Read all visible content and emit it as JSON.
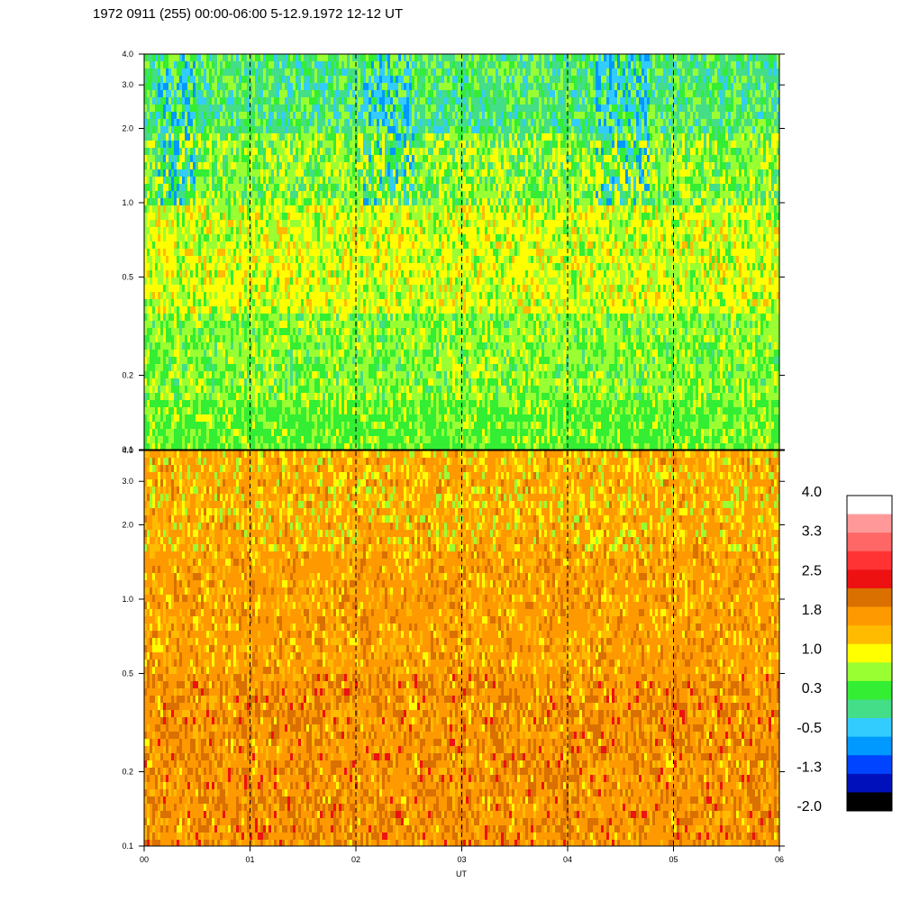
{
  "chart_data": {
    "type": "heatmap",
    "title": "1972 0911 (255) 00:00-06:00 5-12.9.1972  12-12 UT",
    "xlabel": "UT",
    "x_tick_labels": [
      "00",
      "01",
      "02",
      "03",
      "04",
      "05",
      "06"
    ],
    "xlim": [
      0,
      6
    ],
    "dashed_hour_lines": [
      1,
      2,
      3,
      4,
      5
    ],
    "grid": false,
    "panels": [
      {
        "name": "upper",
        "y_scale": "log",
        "ylim": [
          0.1,
          4.0
        ],
        "y_ticks": [
          0.1,
          0.2,
          0.5,
          1.0,
          2.0,
          3.0,
          4.0
        ],
        "y_tick_labels": [
          "0.1",
          "0.2",
          "0.5",
          "1.0",
          "2.0",
          "3.0",
          "4.0"
        ],
        "dominant_levels": {
          "low_band": "green",
          "mid_band": "yellow",
          "high_band": "cyan-green with blue streaks"
        }
      },
      {
        "name": "lower",
        "y_scale": "log",
        "ylim": [
          0.1,
          4.0
        ],
        "y_ticks": [
          0.1,
          0.2,
          0.5,
          1.0,
          2.0,
          3.0,
          4.0
        ],
        "y_tick_labels": [
          "0.1",
          "0.2",
          "0.5",
          "1.0",
          "2.0",
          "3.0",
          "4.0"
        ],
        "dominant_levels": {
          "low_band": "orange / dark orange",
          "mid_band": "orange",
          "high_band": "orange with yellow and green speckle"
        }
      }
    ],
    "colorbar": {
      "placement": "right",
      "tick_labels": [
        "4.0",
        "3.3",
        "2.5",
        "1.8",
        "1.0",
        "0.3",
        "-0.5",
        "-1.3",
        "-2.0"
      ],
      "tick_values": [
        4.0,
        3.3,
        2.5,
        1.8,
        1.0,
        0.3,
        -0.5,
        -1.3,
        -2.0
      ],
      "colors_top_to_bottom": [
        "#ffffff",
        "#ff9999",
        "#ff6666",
        "#ff3333",
        "#ee1111",
        "#d97000",
        "#ff9900",
        "#ffbb00",
        "#ffff00",
        "#99ff33",
        "#33ee33",
        "#44dd88",
        "#33ccff",
        "#0099ff",
        "#0044ff",
        "#0011bb",
        "#000000"
      ]
    }
  }
}
